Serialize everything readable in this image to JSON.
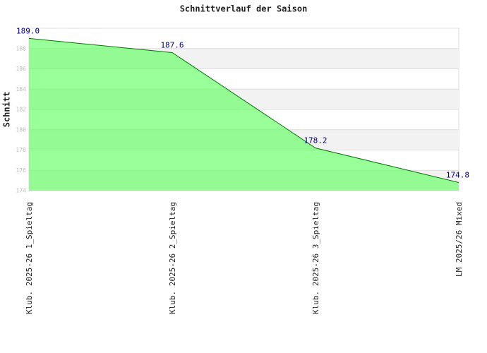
{
  "chart_data": {
    "type": "area",
    "title": "Schnittverlauf der Saison",
    "y_label": "Schnitt",
    "categories": [
      "Klub. 2025-26  1_Spieltag",
      "Klub. 2025-26  2_Spieltag",
      "Klub. 2025-26  3_Spieltag",
      "LM 2025/26 Mixed"
    ],
    "values": [
      189.0,
      187.6,
      178.2,
      174.8
    ],
    "value_labels": [
      "189.0",
      "187.6",
      "178.2",
      "174.8"
    ],
    "color": "#55ff55",
    "line_color": "#007700",
    "ylim": [
      174,
      190
    ],
    "yticks": [
      174,
      176,
      178,
      180,
      182,
      184,
      186,
      188
    ],
    "grid": true
  }
}
